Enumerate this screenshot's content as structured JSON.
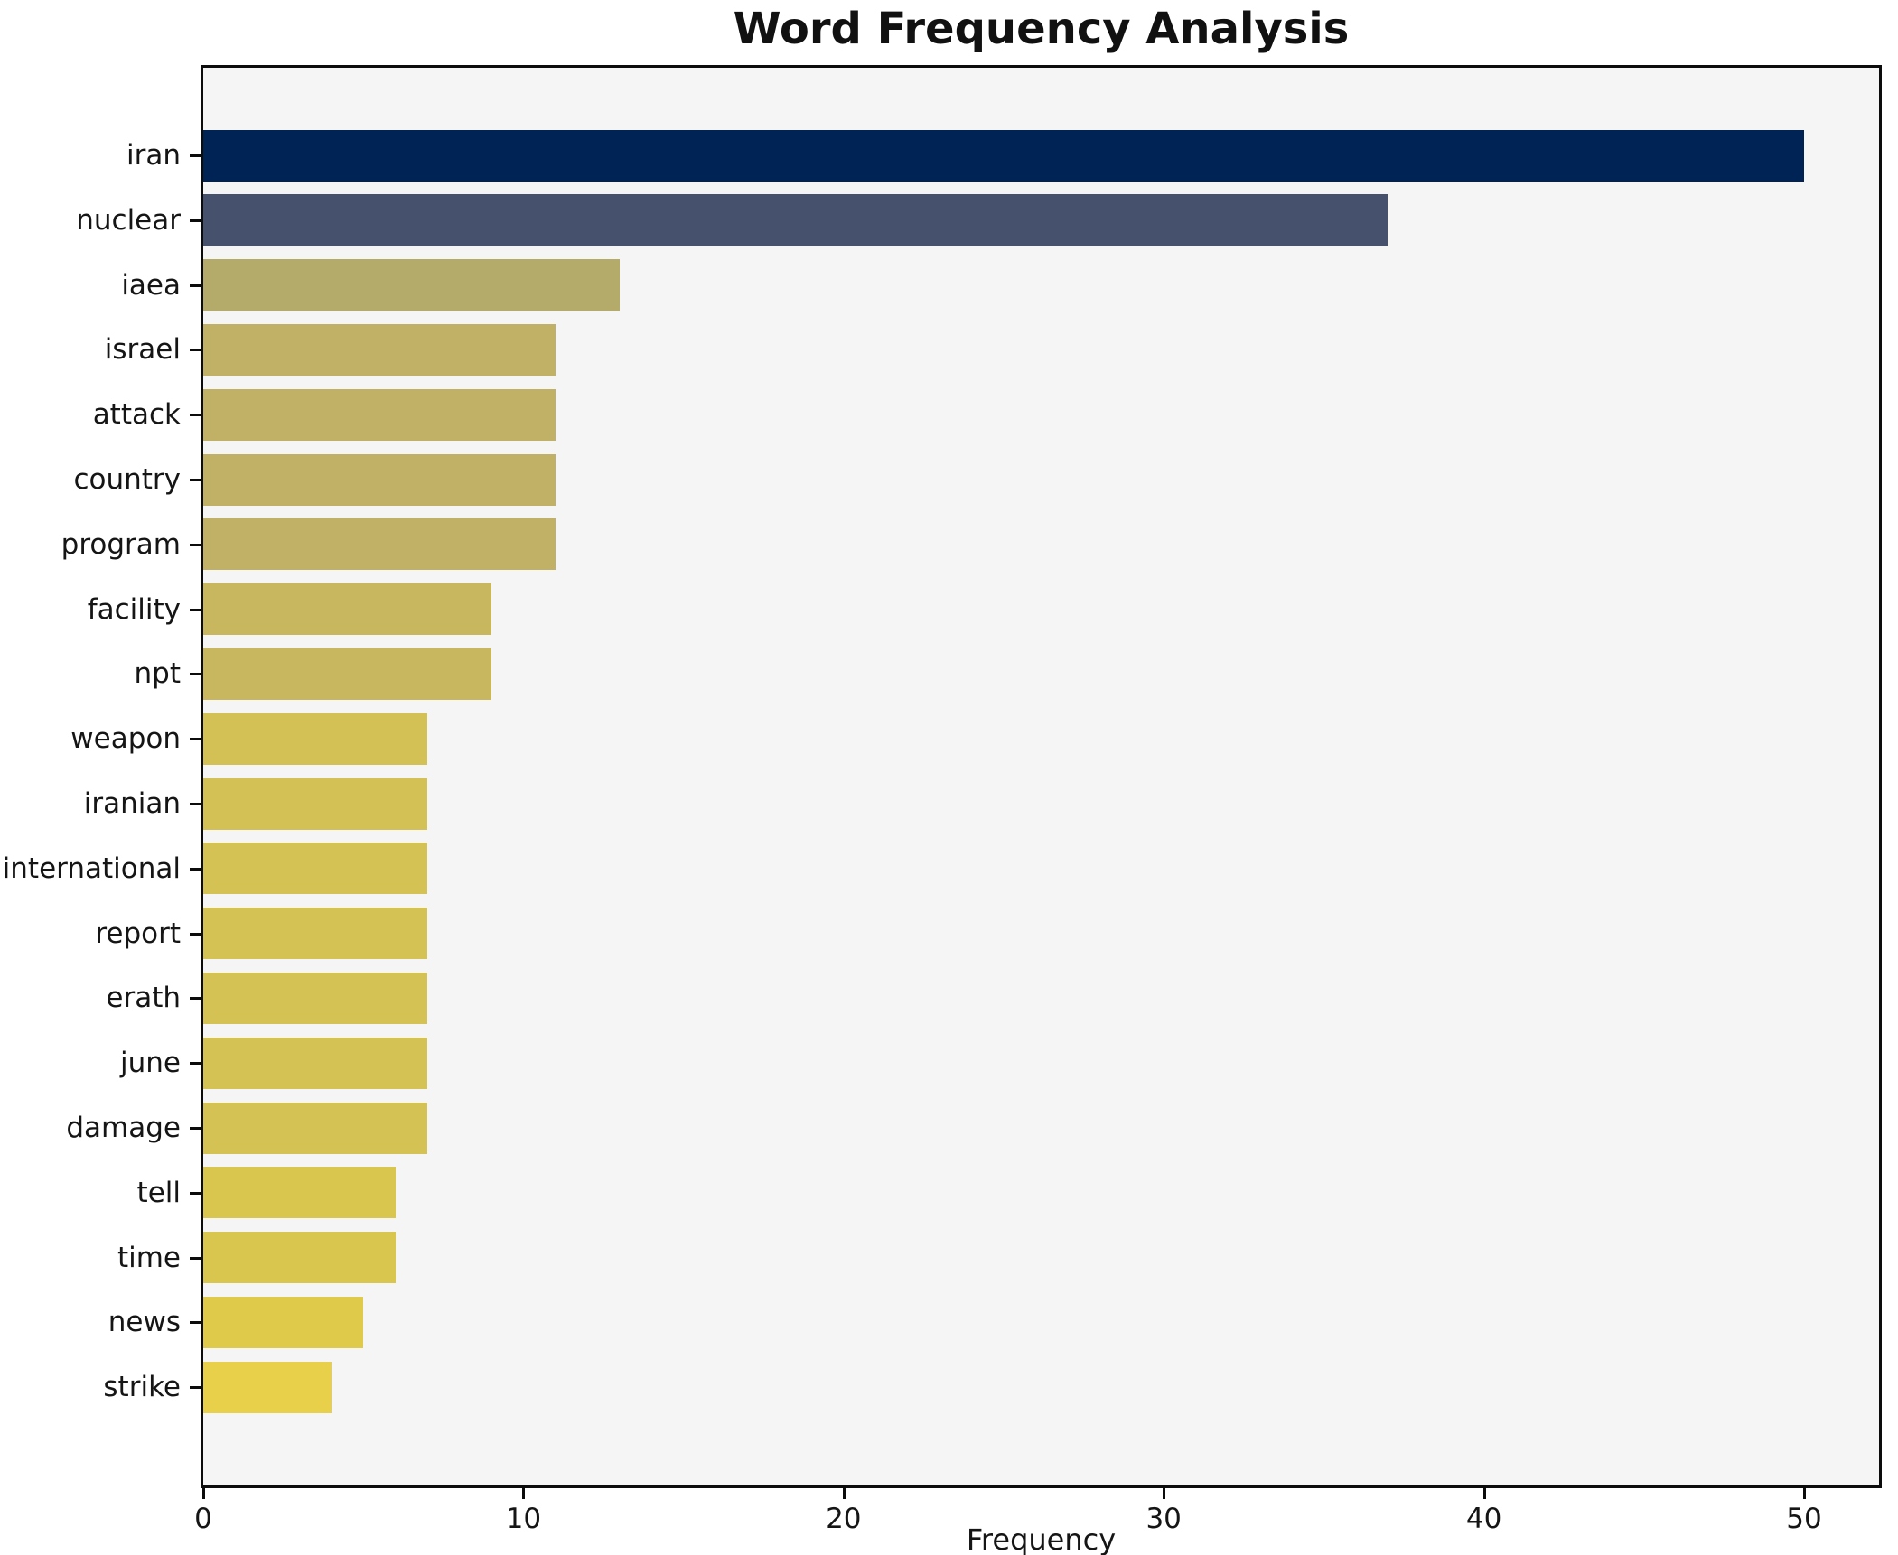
{
  "chart_data": {
    "type": "bar",
    "orientation": "horizontal",
    "title": "Word Frequency Analysis",
    "xlabel": "Frequency",
    "ylabel": "",
    "categories": [
      "iran",
      "nuclear",
      "iaea",
      "israel",
      "attack",
      "country",
      "program",
      "facility",
      "npt",
      "weapon",
      "iranian",
      "international",
      "report",
      "erath",
      "june",
      "damage",
      "tell",
      "time",
      "news",
      "strike"
    ],
    "values": [
      50,
      37,
      13,
      11,
      11,
      11,
      11,
      9,
      9,
      7,
      7,
      7,
      7,
      7,
      7,
      7,
      6,
      6,
      5,
      4
    ],
    "bar_colors": [
      "#002355",
      "#46516e",
      "#b4aa6a",
      "#c0b166",
      "#c0b166",
      "#c0b166",
      "#c0b166",
      "#c8b75f",
      "#c8b75f",
      "#d3c156",
      "#d3c156",
      "#d4c254",
      "#d4c254",
      "#d4c254",
      "#d4c254",
      "#d4c254",
      "#d9c64f",
      "#d9c64f",
      "#e0ca49",
      "#e9d04b"
    ],
    "xticks": [
      0,
      10,
      20,
      30,
      40,
      50
    ],
    "xlim": [
      0,
      52.3
    ],
    "grid": false,
    "legend_position": "none",
    "plot_background": "#f5f5f6",
    "figure_background": "#ffffff",
    "spine_color": "#0c0c0c"
  }
}
